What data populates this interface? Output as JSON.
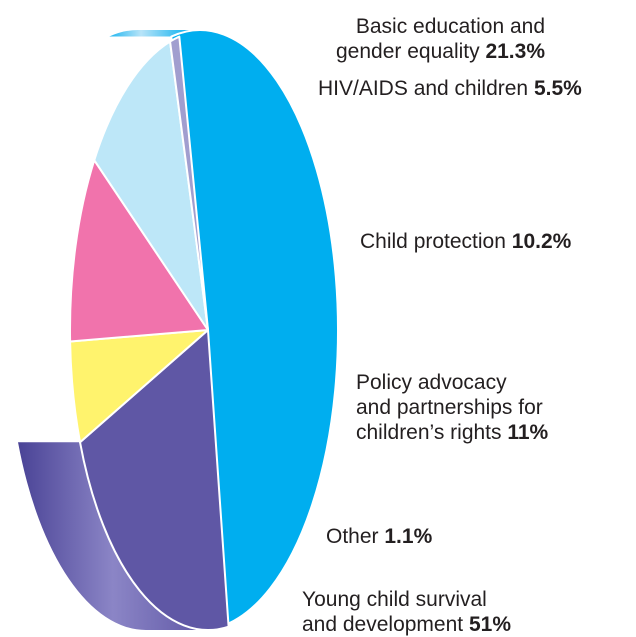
{
  "chart_data": {
    "type": "pie",
    "style": "3d-exploded",
    "legend": "none",
    "slices": [
      {
        "key": "young",
        "line1": "Young child survival",
        "line2": "and development",
        "line3": "",
        "value": 51,
        "value_label": "51%",
        "color": "#00aeef"
      },
      {
        "key": "basic",
        "line1": "Basic education and",
        "line2": "gender equality",
        "line3": "",
        "value": 21.3,
        "value_label": "21.3%",
        "color": "#5f57a5"
      },
      {
        "key": "hiv",
        "line1": "HIV/AIDS and children",
        "line2": "",
        "line3": "",
        "value": 5.5,
        "value_label": "5.5%",
        "color": "#fff36d"
      },
      {
        "key": "protection",
        "line1": "Child protection",
        "line2": "",
        "line3": "",
        "value": 10.2,
        "value_label": "10.2%",
        "color": "#f173ac"
      },
      {
        "key": "policy",
        "line1": "Policy advocacy",
        "line2": "and partnerships for",
        "line3": "children’s rights",
        "value": 11,
        "value_label": "11%",
        "color": "#bde7f8"
      },
      {
        "key": "other",
        "line1": "Other",
        "line2": "",
        "line3": "",
        "value": 1.1,
        "value_label": "1.1%",
        "color": "#a19ecf"
      }
    ]
  }
}
